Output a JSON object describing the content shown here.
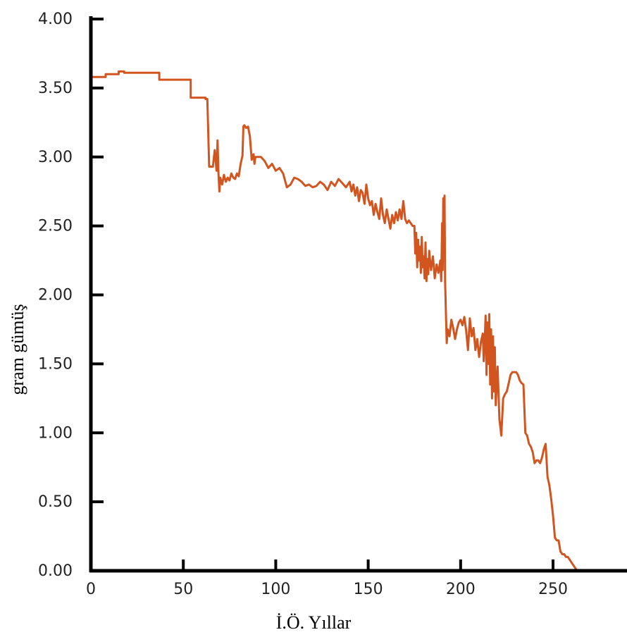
{
  "chart_data": {
    "type": "line",
    "title": "",
    "xlabel": "İ.Ö. Yıllar",
    "ylabel": "gram gümüş",
    "xlim": [
      0,
      290
    ],
    "ylim": [
      0,
      4
    ],
    "x_ticks": [
      0,
      50,
      100,
      150,
      200,
      250
    ],
    "x_tick_labels": [
      "0",
      "50",
      "100",
      "150",
      "200",
      "250"
    ],
    "y_ticks": [
      0,
      0.5,
      1,
      1.5,
      2,
      2.5,
      3,
      3.5,
      4
    ],
    "y_tick_labels": [
      "0.00",
      "0.50",
      "1.00",
      "1.50",
      "2.00",
      "2.50",
      "3.00",
      "3.50",
      "4.00"
    ],
    "grid": false,
    "colors": {
      "line": "#d2541e",
      "axis": "#000000"
    },
    "series": [
      {
        "x": [
          0,
          8,
          8,
          15,
          15,
          18,
          18,
          37,
          37,
          54,
          54,
          62,
          62,
          63,
          64,
          65,
          66,
          67,
          68,
          68.5,
          69,
          69.5,
          70,
          71,
          72,
          73,
          74,
          75,
          76,
          77,
          78,
          79,
          80,
          81,
          82,
          82.5,
          83,
          84,
          85,
          86,
          87,
          88,
          88.5,
          89,
          92,
          94,
          96,
          98,
          100,
          102,
          104,
          106,
          108,
          110,
          112,
          114,
          116,
          118,
          120,
          122,
          124,
          126,
          128,
          130,
          132,
          134,
          136,
          138,
          140,
          141,
          142,
          143,
          144,
          145,
          146,
          147,
          148,
          149,
          150,
          151,
          152,
          153,
          154,
          155,
          156,
          157,
          158,
          159,
          160,
          161,
          162,
          163,
          164,
          165,
          166,
          167,
          168,
          169,
          170,
          171,
          172,
          173,
          174,
          175,
          175.5,
          176,
          176.5,
          177,
          177.5,
          178,
          178.5,
          179,
          179.5,
          180,
          180.5,
          181,
          181.5,
          182,
          182.5,
          183,
          184,
          185,
          186,
          187,
          188,
          189,
          189.5,
          190,
          190.3,
          190.6,
          191,
          191.3,
          191.6,
          192,
          192.5,
          193,
          194,
          195,
          196,
          197,
          198,
          199,
          200,
          201,
          202,
          203,
          204,
          205,
          206,
          207,
          208,
          209,
          210,
          211,
          212,
          212.5,
          213,
          213.5,
          214,
          214.5,
          215,
          215.5,
          216,
          216.5,
          217,
          217.5,
          218,
          218.5,
          219,
          220,
          221,
          222,
          223,
          224,
          225,
          226,
          227,
          228,
          229,
          230,
          231,
          232,
          233,
          234,
          235,
          236,
          237,
          238,
          239,
          240,
          241,
          242,
          243,
          244,
          245,
          246,
          247,
          248,
          249,
          250,
          251,
          252,
          253,
          254,
          255,
          256,
          257,
          258,
          259,
          260,
          261,
          262,
          263
        ],
        "y": [
          3.58,
          3.58,
          3.6,
          3.6,
          3.62,
          3.62,
          3.61,
          3.61,
          3.56,
          3.56,
          3.43,
          3.43,
          3.42,
          3.42,
          2.93,
          2.93,
          2.93,
          3.05,
          2.9,
          3.12,
          2.88,
          2.75,
          2.85,
          2.8,
          2.87,
          2.82,
          2.85,
          2.83,
          2.88,
          2.85,
          2.84,
          2.88,
          2.86,
          2.95,
          3.01,
          3.22,
          3.23,
          3.21,
          3.22,
          3.15,
          2.98,
          3.02,
          2.95,
          3.0,
          3.0,
          2.97,
          2.92,
          2.95,
          2.9,
          2.92,
          2.88,
          2.78,
          2.8,
          2.85,
          2.84,
          2.82,
          2.79,
          2.8,
          2.78,
          2.79,
          2.82,
          2.8,
          2.76,
          2.82,
          2.79,
          2.84,
          2.81,
          2.78,
          2.82,
          2.75,
          2.8,
          2.72,
          2.78,
          2.68,
          2.76,
          2.74,
          2.66,
          2.8,
          2.7,
          2.65,
          2.68,
          2.58,
          2.66,
          2.6,
          2.55,
          2.7,
          2.58,
          2.52,
          2.62,
          2.55,
          2.48,
          2.58,
          2.52,
          2.6,
          2.54,
          2.62,
          2.55,
          2.68,
          2.55,
          2.52,
          2.54,
          2.52,
          2.5,
          2.5,
          2.3,
          2.45,
          2.2,
          2.4,
          2.25,
          2.35,
          2.16,
          2.42,
          2.2,
          2.28,
          2.12,
          2.38,
          2.1,
          2.26,
          2.15,
          2.32,
          2.18,
          2.28,
          2.12,
          2.22,
          2.16,
          2.25,
          2.1,
          2.52,
          2.18,
          2.7,
          2.4,
          2.72,
          2.1,
          1.9,
          1.65,
          1.75,
          1.7,
          1.82,
          1.76,
          1.68,
          1.75,
          1.8,
          1.82,
          1.78,
          1.84,
          1.74,
          1.6,
          1.83,
          1.7,
          1.76,
          1.6,
          1.68,
          1.55,
          1.66,
          1.72,
          1.52,
          1.65,
          1.85,
          1.42,
          1.8,
          1.5,
          1.86,
          1.35,
          1.75,
          1.25,
          1.7,
          1.3,
          1.62,
          1.2,
          1.48,
          1.1,
          0.98,
          1.25,
          1.28,
          1.3,
          1.36,
          1.42,
          1.44,
          1.44,
          1.44,
          1.42,
          1.38,
          1.36,
          1.35,
          1.0,
          0.98,
          0.92,
          0.9,
          0.86,
          0.78,
          0.8,
          0.8,
          0.78,
          0.82,
          0.88,
          0.92,
          0.68,
          0.62,
          0.52,
          0.4,
          0.24,
          0.22,
          0.22,
          0.14,
          0.12,
          0.12,
          0.1,
          0.1,
          0.08,
          0.06,
          0.04,
          0.02,
          0.0
        ]
      }
    ]
  }
}
